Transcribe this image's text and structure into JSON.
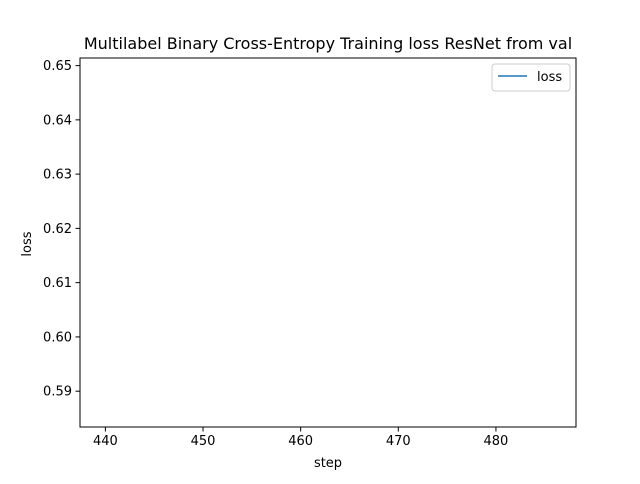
{
  "chart_data": {
    "type": "line",
    "title": "Multilabel Binary Cross-Entropy Training loss ResNet from val",
    "xlabel": "step",
    "ylabel": "loss",
    "xlim": [
      437.4,
      488.2
    ],
    "ylim": [
      0.5834,
      0.6514
    ],
    "xticks": [
      440,
      450,
      460,
      470,
      480
    ],
    "yticks": [
      0.59,
      0.6,
      0.61,
      0.62,
      0.63,
      0.64,
      0.65
    ],
    "xtick_labels": [
      "440",
      "450",
      "460",
      "470",
      "480"
    ],
    "ytick_labels": [
      "0.59",
      "0.60",
      "0.61",
      "0.62",
      "0.63",
      "0.64",
      "0.65"
    ],
    "grid": false,
    "legend_position": "top-right",
    "series": [
      {
        "name": "loss",
        "color": "#1f77b4",
        "x": [],
        "y": []
      }
    ]
  }
}
